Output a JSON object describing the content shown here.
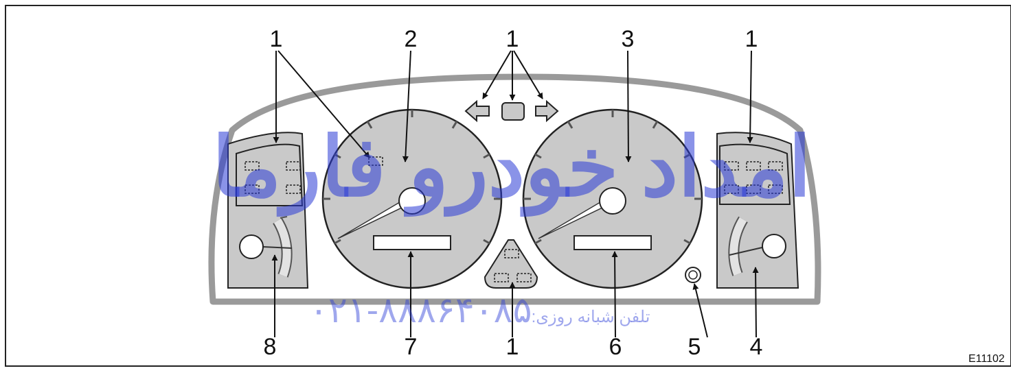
{
  "callouts": {
    "c1_left": "1",
    "c1_left_gauge": "1",
    "c2": "2",
    "c1_top": "1",
    "c3": "3",
    "c1_right": "1",
    "c8": "8",
    "c7": "7",
    "c1_bottom": "1",
    "c6": "6",
    "c5": "5",
    "c4": "4"
  },
  "figure_code": "E11102",
  "watermark": {
    "brand": "امداد خودرو فارما",
    "phone_label": "تلفن شبانه روزی:",
    "phone": "۰۲۱-۸۸۸۶۴۰۸۵"
  },
  "colors": {
    "outline": "#8a8a8a",
    "gauge_fill": "#c9c9c9",
    "watermark": "#2a3bd6"
  }
}
